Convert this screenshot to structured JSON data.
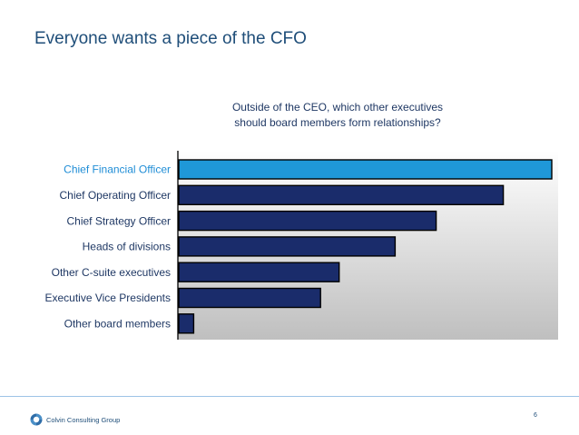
{
  "slide": {
    "title": "Everyone wants a piece of the CFO",
    "page_number": "6"
  },
  "footer": {
    "company": "Colvin Consulting Group",
    "logo_icon": "swirl-logo-icon"
  },
  "colors": {
    "bar_default": "#1a2c6b",
    "bar_highlight": "#1f98d8",
    "plot_bg_top": "#ffffff",
    "plot_bg_bottom": "#bfbfbf",
    "label_default": "#1f3864",
    "label_highlight": "#1f8dd6"
  },
  "chart_data": {
    "type": "bar",
    "orientation": "horizontal",
    "title": "Outside of the CEO, which other executives should board members form relationships?",
    "title_lines": [
      "Outside of the CEO, which other executives",
      "should board members form relationships?"
    ],
    "categories": [
      "Chief Financial Officer",
      "Chief Operating Officer",
      "Chief Strategy Officer",
      "Heads of divisions",
      "Other C-suite executives",
      "Executive Vice Presidents",
      "Other board members"
    ],
    "values": [
      100,
      87,
      69,
      58,
      43,
      38,
      4
    ],
    "highlight_index": 0,
    "xlim": [
      0,
      100
    ],
    "xlabel": "",
    "ylabel": "",
    "grid": false,
    "legend": "none"
  }
}
